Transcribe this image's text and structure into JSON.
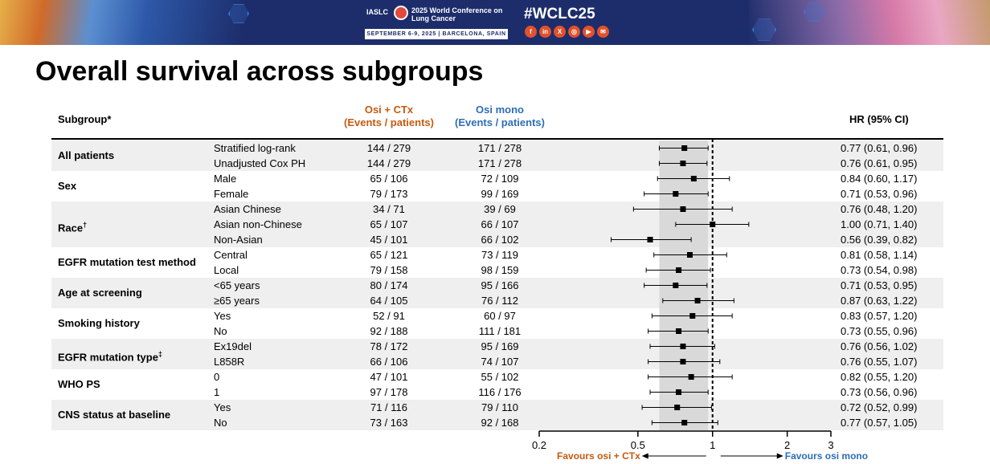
{
  "banner": {
    "org": "IASLC",
    "conference": "2025 World Conference on Lung Cancer",
    "dates": "SEPTEMBER 6-9, 2025 | BARCELONA, SPAIN",
    "hashtag": "#WCLC25",
    "social_icons": [
      "facebook-icon",
      "linkedin-icon",
      "x-icon",
      "instagram-icon",
      "youtube-icon",
      "wechat-icon"
    ],
    "social_glyphs": [
      "f",
      "in",
      "X",
      "◎",
      "▶",
      "✉"
    ],
    "colors": {
      "navy": "#1d2d6b",
      "accent": "#e2522b"
    }
  },
  "title": "Overall survival across subgroups",
  "header": {
    "subgroup": "Subgroup*",
    "arm1_line1": "Osi + CTx",
    "arm1_line2": "(Events / patients)",
    "arm2_line1": "Osi mono",
    "arm2_line2": "(Events / patients)",
    "hr": "HR (95% CI)"
  },
  "colors": {
    "arm1": "#c55a11",
    "arm2": "#2e6eb5",
    "shade": "#efefef",
    "ci_band": "#d9d9d9"
  },
  "groups": [
    {
      "name": "All patients",
      "sup": "",
      "rows": [
        {
          "label": "Stratified log-rank",
          "arm1": "144 / 279",
          "arm2": "171 / 278",
          "hr_text": "0.77 (0.61, 0.96)"
        },
        {
          "label": "Unadjusted Cox PH",
          "arm1": "144 / 279",
          "arm2": "171 / 278",
          "hr_text": "0.76 (0.61, 0.95)"
        }
      ]
    },
    {
      "name": "Sex",
      "sup": "",
      "rows": [
        {
          "label": "Male",
          "arm1": "65 / 106",
          "arm2": "72 / 109",
          "hr_text": "0.84 (0.60, 1.17)"
        },
        {
          "label": "Female",
          "arm1": "79 / 173",
          "arm2": "99 / 169",
          "hr_text": "0.71 (0.53, 0.96)"
        }
      ]
    },
    {
      "name": "Race",
      "sup": "†",
      "rows": [
        {
          "label": "Asian Chinese",
          "arm1": "34 / 71",
          "arm2": "39 / 69",
          "hr_text": "0.76 (0.48, 1.20)"
        },
        {
          "label": "Asian non-Chinese",
          "arm1": "65 / 107",
          "arm2": "66 / 107",
          "hr_text": "1.00 (0.71, 1.40)"
        },
        {
          "label": "Non-Asian",
          "arm1": "45 / 101",
          "arm2": "66 / 102",
          "hr_text": "0.56 (0.39, 0.82)"
        }
      ]
    },
    {
      "name": "EGFR mutation test method",
      "sup": "",
      "rows": [
        {
          "label": "Central",
          "arm1": "65 / 121",
          "arm2": "73 / 119",
          "hr_text": "0.81 (0.58, 1.14)"
        },
        {
          "label": "Local",
          "arm1": "79 / 158",
          "arm2": "98 / 159",
          "hr_text": "0.73 (0.54, 0.98)"
        }
      ]
    },
    {
      "name": "Age at screening",
      "sup": "",
      "rows": [
        {
          "label": "<65 years",
          "arm1": "80 / 174",
          "arm2": "95 / 166",
          "hr_text": "0.71 (0.53, 0.95)"
        },
        {
          "label": "≥65 years",
          "arm1": "64 / 105",
          "arm2": "76 / 112",
          "hr_text": "0.87 (0.63, 1.22)"
        }
      ]
    },
    {
      "name": "Smoking history",
      "sup": "",
      "rows": [
        {
          "label": "Yes",
          "arm1": "52 / 91",
          "arm2": "60 / 97",
          "hr_text": "0.83 (0.57, 1.20)"
        },
        {
          "label": "No",
          "arm1": "92 / 188",
          "arm2": "111 / 181",
          "hr_text": "0.73 (0.55, 0.96)"
        }
      ]
    },
    {
      "name": "EGFR mutation type",
      "sup": "‡",
      "rows": [
        {
          "label": "Ex19del",
          "arm1": "78 / 172",
          "arm2": "95 / 169",
          "hr_text": "0.76 (0.56, 1.02)"
        },
        {
          "label": "L858R",
          "arm1": "66 / 106",
          "arm2": "74 / 107",
          "hr_text": "0.76 (0.55, 1.07)"
        }
      ]
    },
    {
      "name": "WHO PS",
      "sup": "",
      "rows": [
        {
          "label": "0",
          "arm1": "47 / 101",
          "arm2": "55 / 102",
          "hr_text": "0.82 (0.55, 1.20)"
        },
        {
          "label": "1",
          "arm1": "97 / 178",
          "arm2": "116 / 176",
          "hr_text": "0.73 (0.56, 0.96)"
        }
      ]
    },
    {
      "name": "CNS status at baseline",
      "sup": "",
      "rows": [
        {
          "label": "Yes",
          "arm1": "71 / 116",
          "arm2": "79 / 110",
          "hr_text": "0.72 (0.52, 0.99)"
        },
        {
          "label": "No",
          "arm1": "73 / 163",
          "arm2": "92 / 168",
          "hr_text": "0.77 (0.57, 1.05)"
        }
      ]
    }
  ],
  "chart_data": {
    "type": "scatter",
    "plot": "forest",
    "x_scale": "log",
    "xlim": [
      0.2,
      3
    ],
    "xticks": [
      0.2,
      0.5,
      1,
      2,
      3
    ],
    "xtick_labels": [
      "0.2",
      "0.5",
      "1",
      "2",
      "3"
    ],
    "reference_line": 1,
    "shaded_band": [
      0.61,
      0.96
    ],
    "favours_left": "Favours osi + CTx",
    "favours_right": "Favours osi mono",
    "estimates": [
      {
        "hr": 0.77,
        "lo": 0.61,
        "hi": 0.96
      },
      {
        "hr": 0.76,
        "lo": 0.61,
        "hi": 0.95
      },
      {
        "hr": 0.84,
        "lo": 0.6,
        "hi": 1.17
      },
      {
        "hr": 0.71,
        "lo": 0.53,
        "hi": 0.96
      },
      {
        "hr": 0.76,
        "lo": 0.48,
        "hi": 1.2
      },
      {
        "hr": 1.0,
        "lo": 0.71,
        "hi": 1.4
      },
      {
        "hr": 0.56,
        "lo": 0.39,
        "hi": 0.82
      },
      {
        "hr": 0.81,
        "lo": 0.58,
        "hi": 1.14
      },
      {
        "hr": 0.73,
        "lo": 0.54,
        "hi": 0.98
      },
      {
        "hr": 0.71,
        "lo": 0.53,
        "hi": 0.95
      },
      {
        "hr": 0.87,
        "lo": 0.63,
        "hi": 1.22
      },
      {
        "hr": 0.83,
        "lo": 0.57,
        "hi": 1.2
      },
      {
        "hr": 0.73,
        "lo": 0.55,
        "hi": 0.96
      },
      {
        "hr": 0.76,
        "lo": 0.56,
        "hi": 1.02
      },
      {
        "hr": 0.76,
        "lo": 0.55,
        "hi": 1.07
      },
      {
        "hr": 0.82,
        "lo": 0.55,
        "hi": 1.2
      },
      {
        "hr": 0.73,
        "lo": 0.56,
        "hi": 0.96
      },
      {
        "hr": 0.72,
        "lo": 0.52,
        "hi": 0.99
      },
      {
        "hr": 0.77,
        "lo": 0.57,
        "hi": 1.05
      }
    ]
  }
}
